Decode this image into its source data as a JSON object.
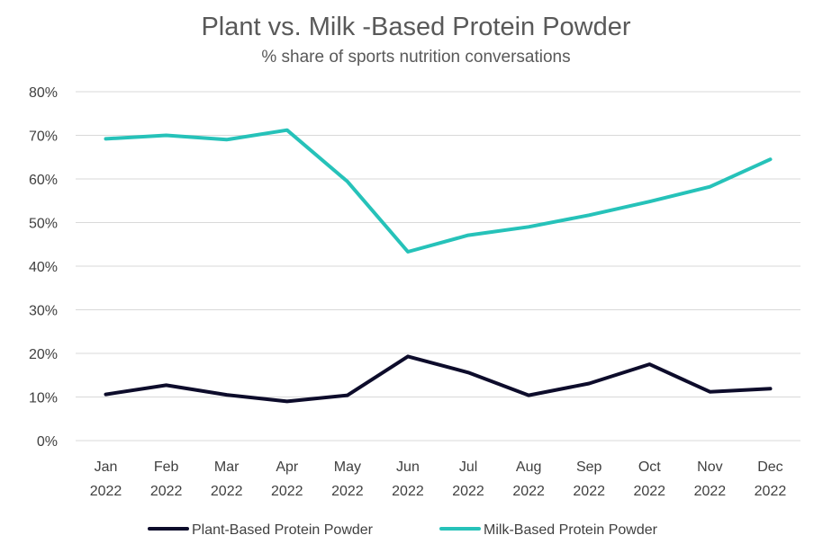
{
  "chart_data": {
    "type": "line",
    "title": "Plant vs. Milk -Based Protein Powder",
    "subtitle": "% share of sports nutrition conversations",
    "xlabel": "",
    "ylabel": "",
    "categories": [
      [
        "Jan",
        "2022"
      ],
      [
        "Feb",
        "2022"
      ],
      [
        "Mar",
        "2022"
      ],
      [
        "Apr",
        "2022"
      ],
      [
        "May",
        "2022"
      ],
      [
        "Jun",
        "2022"
      ],
      [
        "Jul",
        "2022"
      ],
      [
        "Aug",
        "2022"
      ],
      [
        "Sep",
        "2022"
      ],
      [
        "Oct",
        "2022"
      ],
      [
        "Nov",
        "2022"
      ],
      [
        "Dec",
        "2022"
      ]
    ],
    "ylim": [
      0,
      80
    ],
    "yticks": [
      0,
      10,
      20,
      30,
      40,
      50,
      60,
      70,
      80
    ],
    "ytick_labels": [
      "0%",
      "10%",
      "20%",
      "30%",
      "40%",
      "50%",
      "60%",
      "70%",
      "80%"
    ],
    "grid": true,
    "legend_position": "bottom",
    "series": [
      {
        "name": "Plant-Based Protein Powder",
        "color": "#0d0c2b",
        "values": [
          10.6,
          12.7,
          10.5,
          9.0,
          10.4,
          19.3,
          15.6,
          10.4,
          13.1,
          17.5,
          11.2,
          11.9
        ]
      },
      {
        "name": "Milk-Based Protein Powder",
        "color": "#26c2b9",
        "values": [
          69.2,
          70.0,
          69.0,
          71.2,
          59.4,
          43.3,
          47.1,
          49.0,
          51.7,
          54.8,
          58.2,
          64.5
        ]
      }
    ]
  }
}
